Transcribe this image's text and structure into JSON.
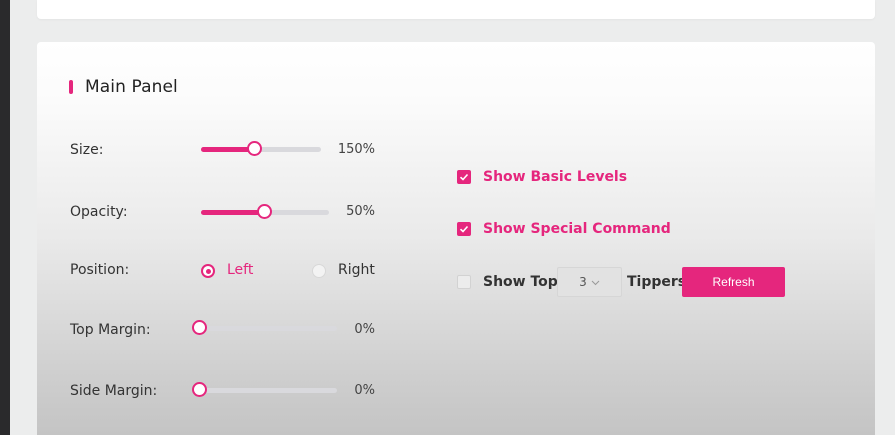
{
  "panel": {
    "title": "Main Panel"
  },
  "settings": {
    "size": {
      "label": "Size:",
      "value": "150%",
      "level": 0.45
    },
    "opacity": {
      "label": "Opacity:",
      "value": "50%",
      "level": 0.5
    },
    "position": {
      "label": "Position:",
      "options": [
        "Left",
        "Right"
      ],
      "selected": "Left"
    },
    "top_margin": {
      "label": "Top Margin:",
      "value": "0%",
      "level": 0
    },
    "side_margin": {
      "label": "Side Margin:",
      "value": "0%",
      "level": 0
    }
  },
  "options": {
    "show_basic_levels": {
      "label": "Show Basic Levels",
      "checked": true
    },
    "show_special_command": {
      "label": "Show Special Command",
      "checked": true
    },
    "show_top": {
      "label_before": "Show Top",
      "label_after": "Tippers",
      "checked": false,
      "count": "3"
    },
    "refresh_label": "Refresh"
  },
  "colors": {
    "accent": "#e5267d"
  },
  "icons": {
    "check": "check-icon",
    "chevron": "chevron-down-icon"
  }
}
